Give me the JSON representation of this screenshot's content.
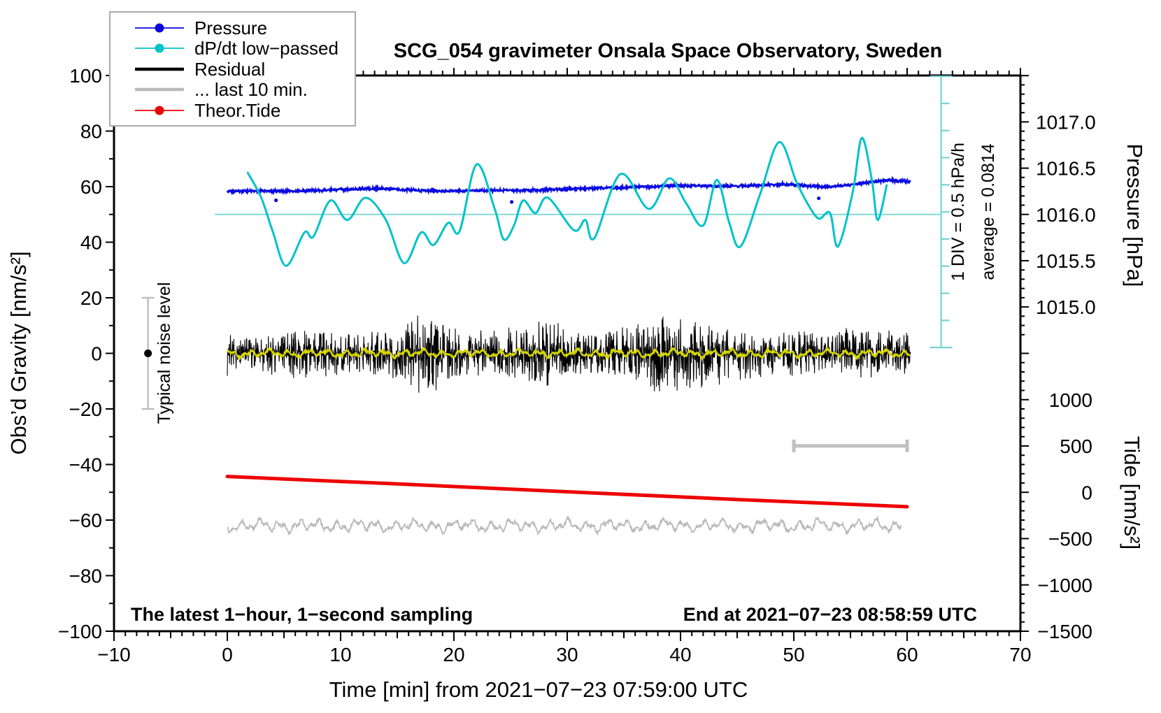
{
  "title": "SCG_054 gravimeter Onsala Space Observatory, Sweden",
  "annotations": {
    "div_scale": "1 DIV = 0.5 hPa/h",
    "average": "average = 0.0814",
    "noise_level": "Typical noise level",
    "sampling_note": "The latest 1−hour, 1−second sampling",
    "end_note": "End at 2021−07−23 08:58:59 UTC"
  },
  "chart_data": {
    "type": "line",
    "title": "SCG_054 gravimeter Onsala Space Observatory, Sweden",
    "grid": false,
    "legend_position": "top-left",
    "x_axis": {
      "label": "Time [min] from 2021−07−23 07:59:00 UTC",
      "min": -10,
      "max": 70,
      "minor": 1,
      "medium": 5,
      "major": 10,
      "tick_values": [
        -10,
        0,
        10,
        20,
        30,
        40,
        50,
        60,
        70
      ],
      "tick_labels": [
        "−10",
        "0",
        "10",
        "20",
        "30",
        "40",
        "50",
        "60",
        "70"
      ]
    },
    "y_left": {
      "label": "Obs’d Gravity [nm/s²]",
      "min": -100,
      "max": 100,
      "minor": 10,
      "major": 20,
      "tick_values": [
        -100,
        -80,
        -60,
        -40,
        -20,
        0,
        20,
        40,
        60,
        80,
        100
      ],
      "tick_labels": [
        "−100",
        "−80",
        "−60",
        "−40",
        "−20",
        "0",
        "20",
        "40",
        "60",
        "80",
        "100"
      ]
    },
    "y_right_pressure": {
      "label": "Pressure [hPa]",
      "tick_values": [
        1015.0,
        1015.5,
        1016.0,
        1016.5,
        1017.0
      ],
      "tick_labels": [
        "1015.0",
        "1015.5",
        "1016.0",
        "1016.5",
        "1017.0"
      ],
      "minor_step_hPa": 0.1,
      "hPa_at_gravity50": 1016.0,
      "gravity_units_per_hPa": 33.3
    },
    "y_right_tide": {
      "label": "Tide [nm/s²]",
      "tick_values": [
        -1500,
        -1000,
        -500,
        0,
        500,
        1000
      ],
      "tick_labels": [
        "−1500",
        "−1000",
        "−500",
        "0",
        "500",
        "1000"
      ],
      "minor_step": 100,
      "tide_units_per_gravity_unit": 30.0,
      "gravity_at_tide0": -50
    },
    "dpdt_ruler": {
      "t": 63,
      "g_top": 99.7,
      "g_bottom": 2.1,
      "divisions": 10,
      "div_value": "0.5 hPa/h"
    },
    "dpdt_zero_line": {
      "g": 50,
      "t1": -1.1,
      "t2": 63
    },
    "noise_errorbar": {
      "t": -7,
      "g_center": 0,
      "g_half_span": 20
    },
    "ten_min_scalebar": {
      "t1": 50,
      "t2": 60,
      "g": -33.3
    },
    "series": [
      {
        "name": "Pressure",
        "color": "#0a0ae0",
        "style": "noisy-line",
        "width": 2.6,
        "axis": "pressure",
        "jitter_g": 0.55,
        "seed": 5,
        "t_range": [
          0,
          60.3
        ],
        "base_points_g": [
          [
            0,
            58.3
          ],
          [
            3,
            58.5
          ],
          [
            6,
            58.4
          ],
          [
            9,
            58.8
          ],
          [
            13,
            59.4
          ],
          [
            16,
            58.9
          ],
          [
            19,
            58.4
          ],
          [
            23,
            58.6
          ],
          [
            27,
            58.7
          ],
          [
            31,
            59.3
          ],
          [
            35,
            59.7
          ],
          [
            38,
            60.1
          ],
          [
            41,
            60.3
          ],
          [
            44,
            60.2
          ],
          [
            47,
            60.4
          ],
          [
            49,
            60.9
          ],
          [
            51,
            60.3
          ],
          [
            53,
            59.9
          ],
          [
            55,
            60.6
          ],
          [
            57,
            61.8
          ],
          [
            58.5,
            62.3
          ],
          [
            60.3,
            61.9
          ]
        ],
        "outlier_dots_g": [
          [
            4.3,
            55.1
          ],
          [
            25.1,
            54.5
          ],
          [
            52.2,
            55.8
          ]
        ],
        "value_range_hPa": [
          1016.24,
          1016.37
        ]
      },
      {
        "name": "dP/dt low−passed",
        "color": "#00c3c8",
        "style": "smooth-line",
        "width": 3,
        "axis": "dpdt",
        "zero_reference_g": 50,
        "gravity_units_per_hPa_per_h": 19.8,
        "points_g": [
          [
            1.8,
            65
          ],
          [
            3,
            56
          ],
          [
            4,
            44
          ],
          [
            5.2,
            31.5
          ],
          [
            6.8,
            43.5
          ],
          [
            7.6,
            42
          ],
          [
            9.1,
            55
          ],
          [
            10.6,
            48
          ],
          [
            12.2,
            56
          ],
          [
            14,
            48
          ],
          [
            15.6,
            32.5
          ],
          [
            17.1,
            43.5
          ],
          [
            18.2,
            39
          ],
          [
            19.5,
            47
          ],
          [
            20.5,
            44
          ],
          [
            22,
            68
          ],
          [
            23.6,
            52
          ],
          [
            24.4,
            41
          ],
          [
            25.3,
            46
          ],
          [
            26.1,
            55
          ],
          [
            27.2,
            50.5
          ],
          [
            28.3,
            56
          ],
          [
            30.6,
            44.3
          ],
          [
            31.6,
            48
          ],
          [
            32.4,
            41.5
          ],
          [
            34.7,
            64.5
          ],
          [
            37.2,
            52
          ],
          [
            39,
            63
          ],
          [
            40.5,
            54
          ],
          [
            42,
            46
          ],
          [
            43.2,
            62.4
          ],
          [
            44.3,
            47
          ],
          [
            45.3,
            38.5
          ],
          [
            47,
            57
          ],
          [
            48.7,
            76
          ],
          [
            50.2,
            62
          ],
          [
            51.2,
            54
          ],
          [
            52.2,
            48.5
          ],
          [
            53.2,
            50.5
          ],
          [
            53.9,
            38.5
          ],
          [
            55.2,
            58
          ],
          [
            56,
            77.5
          ],
          [
            56.9,
            62
          ],
          [
            57.4,
            48
          ],
          [
            58.2,
            60.5
          ]
        ]
      },
      {
        "name": "Residual",
        "color": "#000000",
        "style": "noise-band",
        "width": 1.1,
        "axis": "gravity",
        "center_g": 0,
        "seed": 7,
        "t_range": [
          0,
          60.3
        ],
        "envelope_g": [
          [
            0,
            6
          ],
          [
            2.5,
            5
          ],
          [
            5,
            6
          ],
          [
            7.5,
            7
          ],
          [
            10,
            6
          ],
          [
            12.5,
            6
          ],
          [
            15,
            7
          ],
          [
            17,
            11
          ],
          [
            18,
            12
          ],
          [
            20,
            7
          ],
          [
            22.5,
            6
          ],
          [
            25,
            7
          ],
          [
            27.5,
            9
          ],
          [
            28.5,
            11
          ],
          [
            30,
            6
          ],
          [
            32.5,
            6
          ],
          [
            35,
            8
          ],
          [
            37.5,
            10
          ],
          [
            40,
            10
          ],
          [
            42.5,
            9
          ],
          [
            45,
            7
          ],
          [
            47.5,
            6
          ],
          [
            50,
            6
          ],
          [
            52.5,
            6
          ],
          [
            55,
            7
          ],
          [
            57.5,
            6
          ],
          [
            60,
            6
          ]
        ]
      },
      {
        "name": "... last 10 min.",
        "color": "#b9b9b9",
        "style": "wiggle-line",
        "width": 1.8,
        "axis": "gravity",
        "center_g": -62,
        "amp_g": 2.0,
        "seed": 11,
        "t_range": [
          0,
          59.5
        ]
      },
      {
        "name": "Theor.Tide",
        "color": "#ee0000",
        "style": "line",
        "width": 5,
        "axis": "tide",
        "value_range_tide": [
          171,
          -156
        ],
        "points_g": [
          [
            0,
            -44.3
          ],
          [
            15,
            -47.0
          ],
          [
            30,
            -49.8
          ],
          [
            45,
            -52.6
          ],
          [
            60,
            -55.2
          ]
        ]
      },
      {
        "legend": false,
        "color": "#d6d600",
        "style": "wiggle-line",
        "width": 2.4,
        "axis": "gravity",
        "center_g": 0,
        "amp_g": 1.25,
        "seed": 19,
        "t_range": [
          0,
          60.3
        ],
        "note": "low-passed residual overlay"
      }
    ]
  }
}
